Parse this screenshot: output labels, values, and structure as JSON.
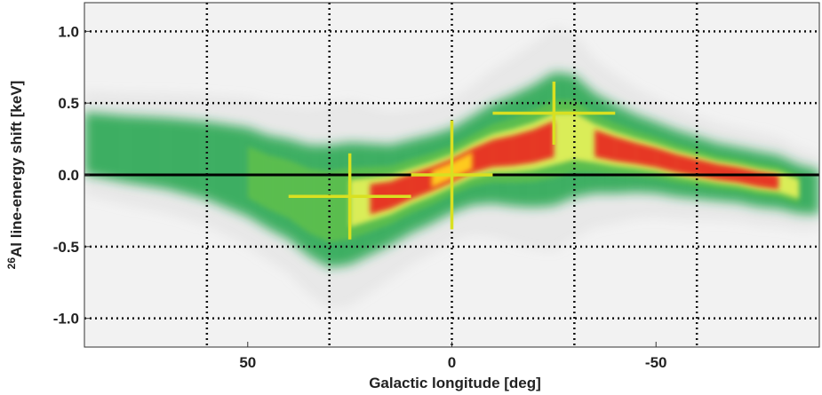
{
  "chart_data": {
    "type": "heatmap",
    "title": "",
    "xlabel": "Galactic longitude [deg]",
    "ylabel_sup": "26",
    "ylabel_main": "Al line-energy shift [keV]",
    "xlim": [
      90,
      -90
    ],
    "ylim": [
      -1.2,
      1.2
    ],
    "x_ticks": [
      {
        "value": 50,
        "label": "50"
      },
      {
        "value": 0,
        "label": "0"
      },
      {
        "value": -50,
        "label": "-50"
      }
    ],
    "y_ticks": [
      {
        "value": 1.0,
        "label": "1.0"
      },
      {
        "value": 0.5,
        "label": "0.5"
      },
      {
        "value": 0.0,
        "label": "0.0"
      },
      {
        "value": -0.5,
        "label": "-0.5"
      },
      {
        "value": -1.0,
        "label": "-1.0"
      }
    ],
    "grid": true,
    "x_gridlines": [
      60,
      30,
      0,
      -30,
      -60
    ],
    "y_gridlines": [
      1.0,
      0.5,
      0.0,
      -0.5,
      -1.0
    ],
    "zero_line": 0.0,
    "colors": {
      "errorbar": "#d9e021",
      "zero_line": "#000000",
      "grid": "#111111",
      "ridge_low": "#1fa54a",
      "ridge_mid": "#e8f25a",
      "ridge_high": "#e8231c",
      "peak": "#ffd21f"
    },
    "error_bars": [
      {
        "x": 25,
        "y": -0.15,
        "x_err": 15,
        "y_err": 0.3
      },
      {
        "x": 0,
        "y": 0.0,
        "x_err": 10,
        "y_err": 0.38
      },
      {
        "x": -25,
        "y": 0.43,
        "x_err": 15,
        "y_err": 0.22
      }
    ],
    "ridge": {
      "x": [
        90,
        80,
        70,
        60,
        50,
        45,
        40,
        35,
        30,
        25,
        20,
        15,
        10,
        5,
        0,
        -5,
        -10,
        -15,
        -20,
        -25,
        -30,
        -35,
        -40,
        -45,
        -50,
        -55,
        -60,
        -65,
        -70,
        -75,
        -80,
        -85,
        -90
      ],
      "y": [
        0.22,
        0.18,
        0.15,
        0.1,
        0.02,
        -0.05,
        -0.1,
        -0.18,
        -0.22,
        -0.2,
        -0.17,
        -0.14,
        -0.08,
        -0.03,
        0.03,
        0.1,
        0.15,
        0.17,
        0.2,
        0.25,
        0.27,
        0.22,
        0.18,
        0.15,
        0.12,
        0.08,
        0.05,
        0.02,
        0.0,
        -0.03,
        -0.05,
        -0.1,
        -0.12
      ],
      "intensity": [
        0.15,
        0.2,
        0.22,
        0.25,
        0.3,
        0.35,
        0.3,
        0.35,
        0.4,
        0.45,
        0.55,
        0.65,
        0.8,
        0.95,
        1.0,
        0.9,
        0.85,
        0.75,
        0.6,
        0.55,
        0.5,
        0.55,
        0.6,
        0.7,
        0.75,
        0.6,
        0.55,
        0.6,
        0.7,
        0.75,
        0.65,
        0.35,
        0.15
      ],
      "width": [
        0.28,
        0.3,
        0.32,
        0.35,
        0.4,
        0.42,
        0.45,
        0.5,
        0.55,
        0.55,
        0.5,
        0.45,
        0.42,
        0.4,
        0.38,
        0.4,
        0.45,
        0.5,
        0.55,
        0.6,
        0.55,
        0.45,
        0.4,
        0.35,
        0.32,
        0.3,
        0.28,
        0.26,
        0.25,
        0.25,
        0.24,
        0.22,
        0.2
      ]
    }
  }
}
